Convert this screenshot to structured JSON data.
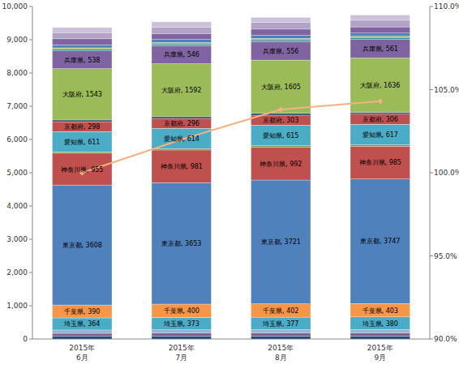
{
  "chart_data": {
    "type": "bar",
    "stacked": true,
    "data_labels": true,
    "grid": false,
    "categories": [
      "2015年\n6月",
      "2015年\n7月",
      "2015年\n8月",
      "2015年\n9月"
    ],
    "ylim": [
      0,
      10000
    ],
    "yticks": [
      0,
      {
        "value": 1000,
        "label": "1,000"
      },
      {
        "value": 2000,
        "label": "2,000"
      },
      {
        "value": 3000,
        "label": "3,000"
      },
      {
        "value": 4000,
        "label": "4,000"
      },
      {
        "value": 5000,
        "label": "5,000"
      },
      {
        "value": 6000,
        "label": "6,000"
      },
      {
        "value": 7000,
        "label": "7,000"
      },
      {
        "value": 8000,
        "label": "8,000"
      },
      {
        "value": 9000,
        "label": "9,000"
      },
      {
        "value": 10000,
        "label": "10,000"
      }
    ],
    "y2lim": [
      90,
      110
    ],
    "y2ticks": [
      {
        "value": 90,
        "label": "90.0%"
      },
      {
        "value": 95,
        "label": "95.0%"
      },
      {
        "value": 100,
        "label": "100.0%"
      },
      {
        "value": 105,
        "label": "105.0%"
      },
      {
        "value": 110,
        "label": "110.0%"
      }
    ],
    "series": [
      {
        "name": null,
        "color": "#1F497D",
        "values": [
          80,
          82,
          83,
          84
        ]
      },
      {
        "name": null,
        "color": "#7F6084",
        "values": [
          90,
          92,
          93,
          94
        ]
      },
      {
        "name": null,
        "color": "#95B3D7",
        "values": [
          100,
          102,
          104,
          105
        ]
      },
      {
        "name": "埼玉県",
        "color": "#4BACC6",
        "values": [
          364,
          373,
          377,
          380
        ],
        "value_labels": [
          "埼玉県, 364",
          "埼玉県, 373",
          "埼玉県, 377",
          "埼玉県, 380"
        ]
      },
      {
        "name": "千葉県",
        "color": "#F79646",
        "values": [
          390,
          400,
          402,
          403
        ],
        "value_labels": [
          "千葉県, 390",
          "千葉県, 400",
          "千葉県, 402",
          "千葉県, 403"
        ]
      },
      {
        "name": "東京都",
        "color": "#4F81BD",
        "values": [
          3608,
          3653,
          3721,
          3747
        ],
        "value_labels": [
          "東京都, 3608",
          "東京都, 3653",
          "東京都, 3721",
          "東京都, 3747"
        ]
      },
      {
        "name": "神奈川県",
        "color": "#C0504D",
        "values": [
          955,
          981,
          992,
          985
        ],
        "value_labels": [
          "神奈川県, 955",
          "神奈川県, 981",
          "神奈川県, 992",
          "神奈川県, 985"
        ]
      },
      {
        "name": null,
        "color": "#77933C",
        "values": [
          40,
          41,
          42,
          42
        ]
      },
      {
        "name": "愛知県",
        "color": "#4BACC6",
        "values": [
          611,
          614,
          615,
          617
        ],
        "value_labels": [
          "愛知県, 611",
          "愛知県, 614",
          "愛知県, 615",
          "愛知県, 617"
        ]
      },
      {
        "name": "京都府",
        "color": "#C0504D",
        "values": [
          298,
          296,
          303,
          306
        ],
        "value_labels": [
          "京都府, 298",
          "京都府, 296",
          "京都府, 303",
          "京都府, 306"
        ]
      },
      {
        "name": null,
        "color": "#2C4D75",
        "values": [
          50,
          51,
          52,
          52
        ]
      },
      {
        "name": "大阪府",
        "color": "#9BBB59",
        "values": [
          1543,
          1592,
          1605,
          1636
        ],
        "value_labels": [
          "大阪府, 1543",
          "大阪府, 1592",
          "大阪府, 1605",
          "大阪府, 1636"
        ]
      },
      {
        "name": "兵庫県",
        "color": "#8064A2",
        "values": [
          538,
          546,
          556,
          561
        ],
        "value_labels": [
          "兵庫県, 538",
          "兵庫県, 546",
          "兵庫県, 556",
          "兵庫県, 561"
        ]
      },
      {
        "name": null,
        "color": "#31859C",
        "values": [
          50,
          51,
          52,
          52
        ]
      },
      {
        "name": null,
        "color": "#9BBB59",
        "values": [
          40,
          41,
          42,
          42
        ]
      },
      {
        "name": null,
        "color": "#4F81BD",
        "values": [
          90,
          92,
          93,
          94
        ]
      },
      {
        "name": null,
        "color": "#8064A2",
        "values": [
          180,
          184,
          187,
          188
        ]
      },
      {
        "name": null,
        "color": "#B3A2C7",
        "values": [
          190,
          194,
          197,
          198
        ]
      },
      {
        "name": null,
        "color": "#CCC1DA",
        "values": [
          150,
          153,
          156,
          157
        ]
      },
      {
        "name": null,
        "type": "line",
        "axis": "y2",
        "color": "#F4B183",
        "marker": "diamond",
        "values": [
          100.0,
          102.0,
          103.8,
          104.3
        ]
      }
    ]
  }
}
